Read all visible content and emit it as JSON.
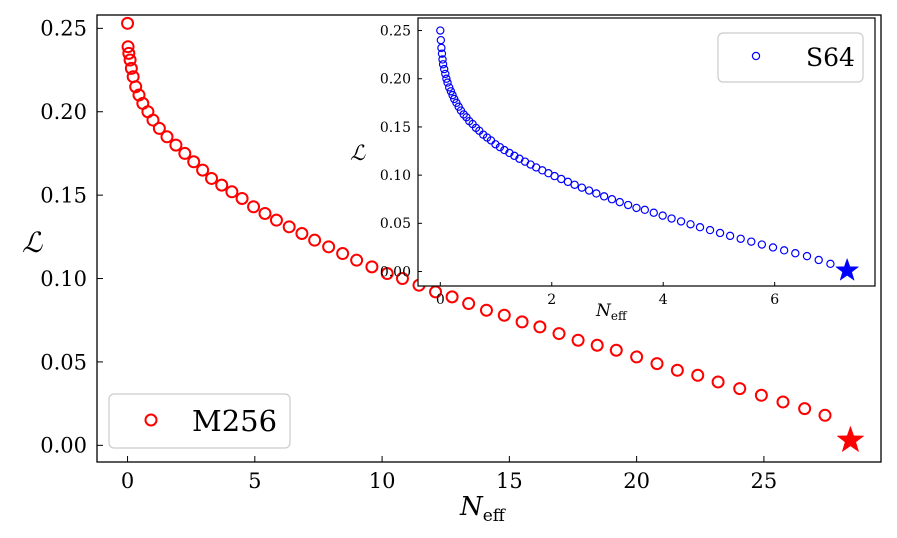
{
  "chart_data": [
    {
      "id": "main",
      "type": "scatter",
      "xlabel_main": "N",
      "xlabel_sub": "eff",
      "ylabel": "ℒ",
      "xlim": [
        -1.2,
        29.6
      ],
      "ylim": [
        -0.01,
        0.258
      ],
      "xticks": [
        0,
        5,
        10,
        15,
        20,
        25
      ],
      "yticks": [
        0.0,
        0.05,
        0.1,
        0.15,
        0.2,
        0.25
      ],
      "series": [
        {
          "name": "M256",
          "color": "#ff0000",
          "marker": "open-circle",
          "x": [
            0.0,
            0.02,
            0.05,
            0.1,
            0.15,
            0.22,
            0.32,
            0.45,
            0.6,
            0.8,
            1.0,
            1.25,
            1.55,
            1.9,
            2.25,
            2.6,
            2.95,
            3.3,
            3.7,
            4.1,
            4.5,
            4.95,
            5.4,
            5.85,
            6.35,
            6.85,
            7.35,
            7.9,
            8.45,
            9.0,
            9.6,
            10.2,
            10.8,
            11.45,
            12.1,
            12.75,
            13.4,
            14.1,
            14.8,
            15.5,
            16.2,
            16.95,
            17.7,
            18.45,
            19.2,
            20.0,
            20.8,
            21.6,
            22.4,
            23.2,
            24.05,
            24.9,
            25.75,
            26.6,
            27.4
          ],
          "y": [
            0.253,
            0.239,
            0.235,
            0.231,
            0.226,
            0.221,
            0.215,
            0.21,
            0.205,
            0.2,
            0.195,
            0.19,
            0.185,
            0.18,
            0.175,
            0.17,
            0.165,
            0.16,
            0.156,
            0.152,
            0.148,
            0.143,
            0.139,
            0.135,
            0.131,
            0.127,
            0.123,
            0.119,
            0.115,
            0.111,
            0.107,
            0.103,
            0.1,
            0.096,
            0.092,
            0.089,
            0.085,
            0.081,
            0.078,
            0.074,
            0.071,
            0.067,
            0.063,
            0.06,
            0.057,
            0.053,
            0.049,
            0.045,
            0.042,
            0.038,
            0.034,
            0.03,
            0.026,
            0.022,
            0.018
          ]
        }
      ],
      "highlight": {
        "x": 28.4,
        "y": 0.003,
        "marker": "star",
        "color": "#ff0000"
      },
      "legend": {
        "label": "M256",
        "position": "lower-left"
      }
    },
    {
      "id": "inset",
      "type": "scatter",
      "xlabel_main": "N",
      "xlabel_sub": "eff",
      "ylabel": "ℒ",
      "xlim": [
        -0.4,
        7.8
      ],
      "ylim": [
        -0.015,
        0.263
      ],
      "xticks": [
        0,
        2,
        4,
        6
      ],
      "yticks": [
        0.0,
        0.05,
        0.1,
        0.15,
        0.2,
        0.25
      ],
      "series": [
        {
          "name": "S64",
          "color": "#0000ff",
          "marker": "open-circle",
          "x": [
            0.0,
            0.01,
            0.02,
            0.03,
            0.04,
            0.05,
            0.07,
            0.09,
            0.11,
            0.13,
            0.16,
            0.19,
            0.22,
            0.25,
            0.29,
            0.33,
            0.37,
            0.42,
            0.47,
            0.52,
            0.58,
            0.64,
            0.7,
            0.77,
            0.84,
            0.91,
            0.99,
            1.07,
            1.15,
            1.24,
            1.33,
            1.42,
            1.52,
            1.62,
            1.72,
            1.83,
            1.94,
            2.05,
            2.17,
            2.29,
            2.41,
            2.54,
            2.67,
            2.8,
            2.94,
            3.08,
            3.22,
            3.37,
            3.52,
            3.67,
            3.83,
            3.99,
            4.15,
            4.32,
            4.49,
            4.66,
            4.84,
            5.02,
            5.2,
            5.39,
            5.58,
            5.77,
            5.97,
            6.17,
            6.37,
            6.58,
            6.79,
            7.0
          ],
          "y": [
            0.25,
            0.24,
            0.232,
            0.226,
            0.22,
            0.215,
            0.21,
            0.205,
            0.2,
            0.196,
            0.191,
            0.187,
            0.183,
            0.179,
            0.175,
            0.171,
            0.167,
            0.163,
            0.16,
            0.156,
            0.153,
            0.149,
            0.146,
            0.142,
            0.139,
            0.136,
            0.132,
            0.129,
            0.126,
            0.123,
            0.12,
            0.117,
            0.114,
            0.111,
            0.108,
            0.105,
            0.102,
            0.099,
            0.096,
            0.093,
            0.09,
            0.087,
            0.084,
            0.081,
            0.078,
            0.075,
            0.072,
            0.069,
            0.066,
            0.064,
            0.061,
            0.058,
            0.055,
            0.052,
            0.049,
            0.046,
            0.043,
            0.04,
            0.037,
            0.034,
            0.031,
            0.028,
            0.025,
            0.022,
            0.019,
            0.016,
            0.012,
            0.008
          ]
        }
      ],
      "highlight": {
        "x": 7.3,
        "y": 0.001,
        "marker": "star",
        "color": "#0000ff"
      },
      "legend": {
        "label": "S64",
        "position": "upper-right"
      }
    }
  ]
}
